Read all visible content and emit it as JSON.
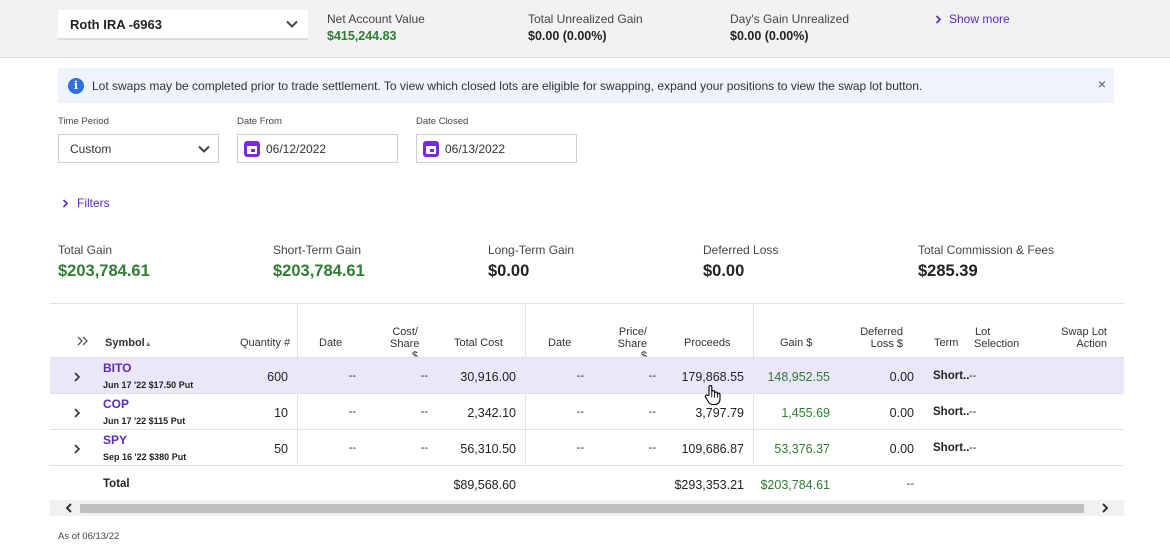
{
  "account": {
    "selected": "Roth IRA -6963",
    "stats": [
      {
        "label": "Net Account Value",
        "value": "$415,244.83"
      },
      {
        "label": "Total Unrealized Gain",
        "value": "$0.00  (0.00%)"
      },
      {
        "label": "Day's Gain Unrealized",
        "value": "$0.00  (0.00%)"
      }
    ],
    "show_more": "Show more"
  },
  "banner": {
    "text": "Lot swaps may be completed prior to trade settlement. To view which closed lots are eligible for swapping, expand your positions to view the swap lot button.",
    "close": "×"
  },
  "filters": {
    "time_period_label": "Time Period",
    "time_period_value": "Custom",
    "date_from_label": "Date From",
    "date_from_value": "06/12/2022",
    "date_closed_label": "Date Closed",
    "date_closed_value": "06/13/2022",
    "filters_link": "Filters"
  },
  "summary": [
    {
      "label": "Total Gain",
      "value": "$203,784.61"
    },
    {
      "label": "Short-Term Gain",
      "value": "$203,784.61"
    },
    {
      "label": "Long-Term Gain",
      "value": "$0.00"
    },
    {
      "label": "Deferred Loss",
      "value": "$0.00"
    },
    {
      "label": "Total Commission & Fees",
      "value": "$285.39"
    }
  ],
  "table": {
    "headers": {
      "symbol": "Symbol",
      "symbol_sort": "▲",
      "quantity": "Quantity #",
      "open_date": "Date",
      "cost_share_1": "Cost/",
      "cost_share_2": "Share $",
      "total_cost": "Total Cost",
      "close_date": "Date",
      "price_share_1": "Price/",
      "price_share_2": "Share $",
      "proceeds": "Proceeds",
      "gain": "Gain $",
      "deferred_1": "Deferred",
      "deferred_2": "Loss $",
      "term": "Term",
      "lot_1": "Lot",
      "lot_2": "Selection",
      "swap_1": "Swap Lot",
      "swap_2": "Action"
    },
    "rows": [
      {
        "symbol": "BITO",
        "desc": "Jun 17 '22 $17.50 Put",
        "quantity": "600",
        "open_date": "--",
        "cost_share": "--",
        "total_cost": "30,916.00",
        "close_date": "--",
        "price_share": "--",
        "proceeds": "179,868.55",
        "gain": "148,952.55",
        "deferred": "0.00",
        "term": "Short..",
        "lot": "--"
      },
      {
        "symbol": "COP",
        "desc": "Jun 17 '22 $115 Put",
        "quantity": "10",
        "open_date": "--",
        "cost_share": "--",
        "total_cost": "2,342.10",
        "close_date": "--",
        "price_share": "--",
        "proceeds": "3,797.79",
        "gain": "1,455.69",
        "deferred": "0.00",
        "term": "Short..",
        "lot": "--"
      },
      {
        "symbol": "SPY",
        "desc": "Sep 16 '22 $380 Put",
        "quantity": "50",
        "open_date": "--",
        "cost_share": "--",
        "total_cost": "56,310.50",
        "close_date": "--",
        "price_share": "--",
        "proceeds": "109,686.87",
        "gain": "53,376.37",
        "deferred": "0.00",
        "term": "Short..",
        "lot": "--"
      }
    ],
    "total": {
      "label": "Total",
      "total_cost": "$89,568.60",
      "proceeds": "$293,353.21",
      "gain": "$203,784.61",
      "deferred": "--"
    }
  },
  "as_of": "As of 06/13/22",
  "colors": {
    "accent": "#5a2bb7",
    "gain_green": "#2e7d32",
    "highlight_row": "#ebe6f8",
    "calendar": "#7a2ad9"
  }
}
